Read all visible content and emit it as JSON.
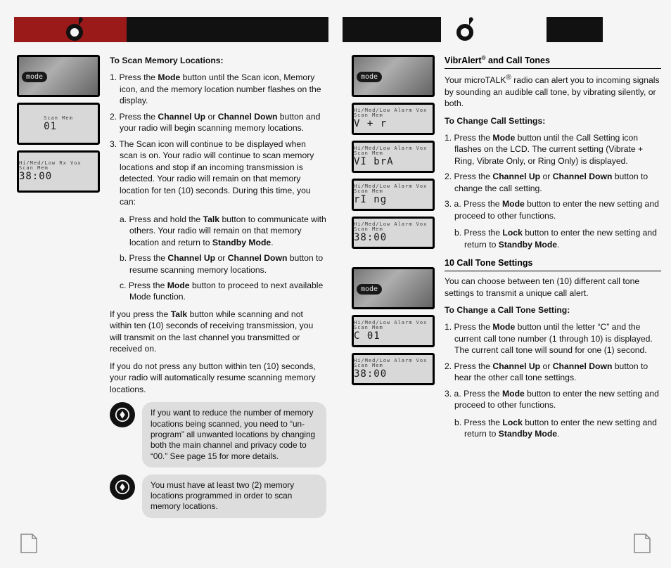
{
  "colors": {
    "accent": "#9a1a1a",
    "black": "#111111",
    "note_bg": "#dddddd",
    "page_bg": "#f5f5f5"
  },
  "left": {
    "heading": "To Scan Memory Locations:",
    "steps": {
      "1": "1. Press the <b>Mode</b> button until the Scan icon, Memory icon, and the memory location number flashes on the display.",
      "2": "2. Press the <b>Channel Up</b> or <b>Channel Down</b> button and your radio will begin scanning memory locations.",
      "3": "3. The Scan icon will continue to be displayed when scan is on. Your radio will continue to scan memory locations and stop if an incoming transmission is detected. Your radio will remain on that memory location for ten (10) seconds. During this time, you can:",
      "3a": "a. Press and hold the <b>Talk</b> button to communicate with others. Your radio will remain on that memory location and return to <b>Standby Mode</b>.",
      "3b": "b. Press the <b>Channel Up</b> or <b>Channel Down</b> button to resume scanning memory locations.",
      "3c": "c. Press the <b>Mode</b> button to proceed to next available Mode function."
    },
    "para1": "If you press the <b>Talk</b> button while scanning and not within ten (10) seconds of receiving transmission, you will transmit on the last channel you transmitted or received on.",
    "para2": "If you do not press any button within ten (10) seconds, your radio will automatically resume scanning memory locations.",
    "note1": "If you want to reduce the number of memory locations being scanned, you need to “un-program” all unwanted locations by changing both the main channel and privacy code to “00.” See page 15 for more details.",
    "note2": "You must have at least two (2) memory locations programmed in order to scan memory locations.",
    "thumbs": {
      "lcd1_top": "Scan Mem",
      "lcd1_main": "01",
      "lcd2_top": "Hi/Med/Low Rx Vox Scan Mem",
      "lcd2_main": "38:00"
    }
  },
  "right": {
    "heading1_a": "VibrAlert",
    "heading1_b": "and Call Tones",
    "intro": "Your microTALK<sup>®</sup> radio can alert you to incoming signals by sounding an audible call tone, by vibrating silently, or both.",
    "sub1": "To Change Call Settings:",
    "s1": {
      "1": "1. Press the <b>Mode</b> button until the Call Setting icon flashes on the LCD. The current setting (Vibrate + Ring, Vibrate Only, or Ring Only) is displayed.",
      "2": "2. Press the <b>Channel Up</b> or <b>Channel Down</b> button to change the call setting.",
      "3": "3. a. Press the <b>Mode</b> button to enter the new setting and proceed to other functions.",
      "3b": "b. Press the <b>Lock</b> button to enter the new setting and return to <b>Standby Mode</b>."
    },
    "heading2": "10 Call Tone Settings",
    "intro2": "You can choose between ten (10) different call tone settings to transmit a unique call alert.",
    "sub2": "To Change a Call Tone Setting:",
    "s2": {
      "1": "1. Press the <b>Mode</b> button until the letter “C” and the current call tone number (1 through 10) is displayed. The current call tone will sound for one (1) second.",
      "2": "2. Press the <b>Channel Up</b> or <b>Channel Down</b> button to hear the other call tone settings.",
      "3": "3. a. Press the <b>Mode</b> button to enter the new setting and proceed to other functions.",
      "3b": "b. Press the <b>Lock</b> button to enter the new setting and return to <b>Standby Mode</b>."
    },
    "thumbs": {
      "lcd_a_top": "Hi/Med/Low Alarm Vox Scan Mem",
      "lcd_a_main": "V + r",
      "lcd_b_main": "VI brA",
      "lcd_c_main": "rI ng",
      "lcd_d_main": "38:00",
      "lcd_e_main": "C 01",
      "lcd_f_main": "38:00"
    }
  }
}
